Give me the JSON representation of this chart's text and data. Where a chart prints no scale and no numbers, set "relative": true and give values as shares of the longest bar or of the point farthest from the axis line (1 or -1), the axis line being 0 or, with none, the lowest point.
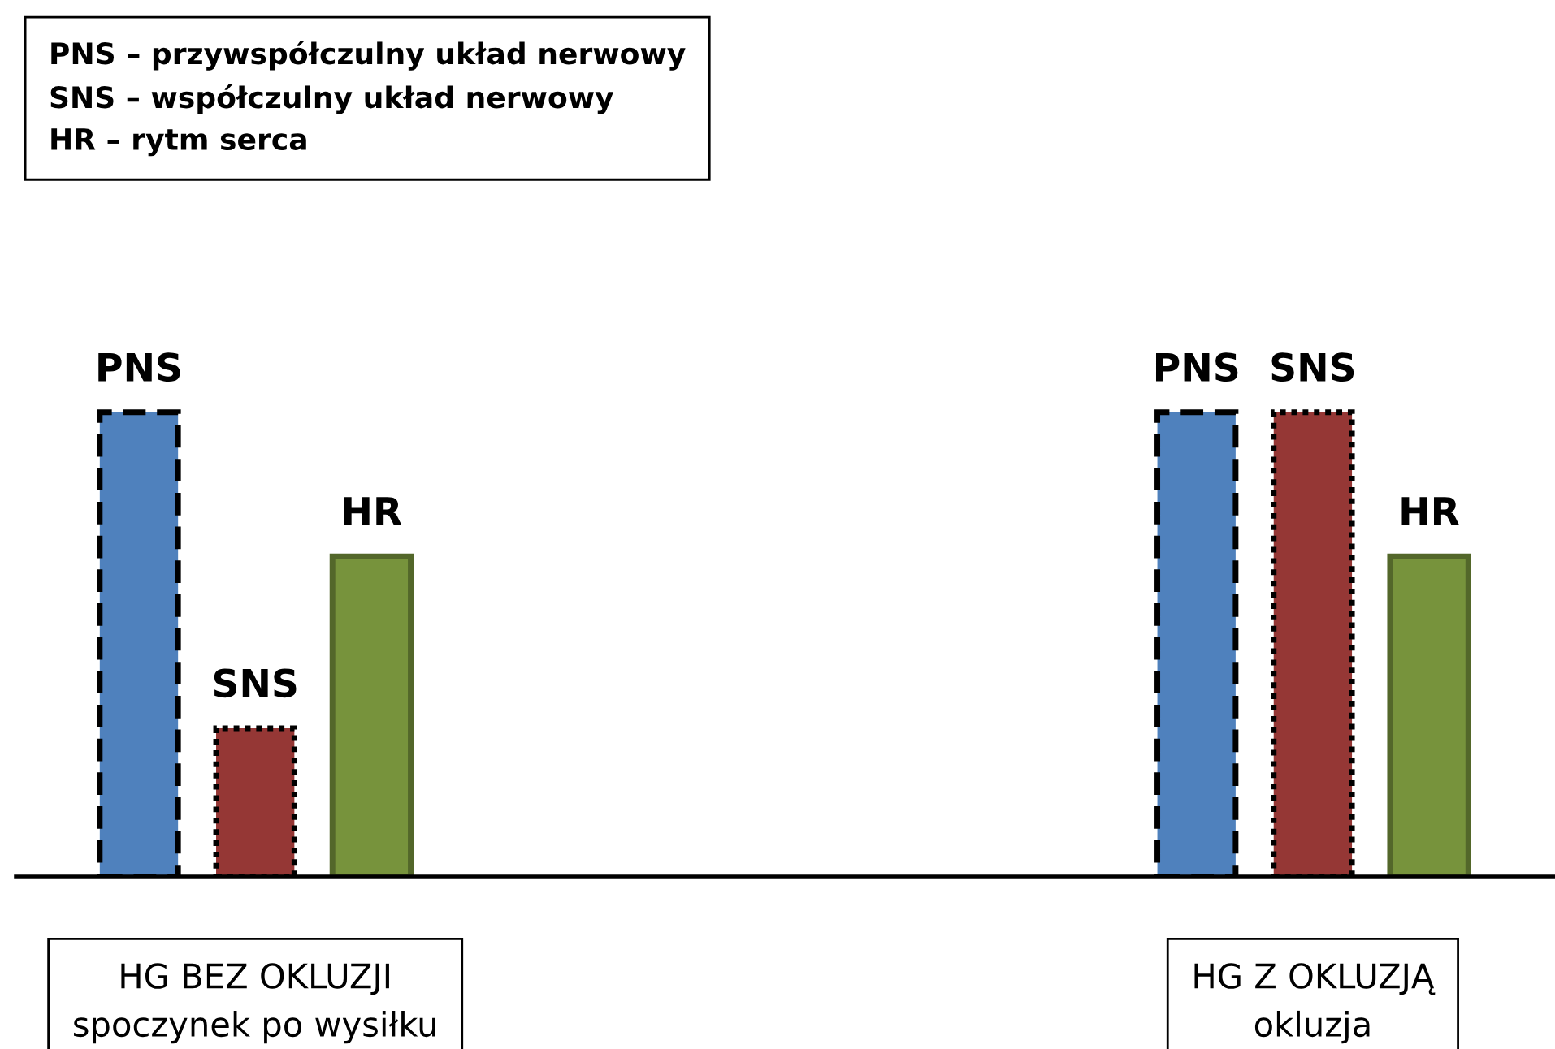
{
  "chart_data": {
    "type": "bar",
    "relative": true,
    "categories": [
      "HG BEZ OKLUZJI\nspoczynek po wysiłku",
      "HG Z OKLUZJĄ\nokluzja"
    ],
    "series": [
      {
        "name": "PNS",
        "color": "#4f81bd",
        "values": [
          1,
          1
        ],
        "line_style": "dashed"
      },
      {
        "name": "SNS",
        "color": "#953735",
        "values": [
          0.32,
          1
        ],
        "line_style": "dotted"
      },
      {
        "name": "HR",
        "color": "#77933c",
        "values": [
          0.69,
          0.69
        ],
        "line_style": "solid"
      }
    ],
    "annotations": [
      "PNS – przywspółczulny układ nerwowy\nSNS – współczulny układ nerwowy\nHR – rytm serca"
    ],
    "grid": false,
    "legend": false
  }
}
